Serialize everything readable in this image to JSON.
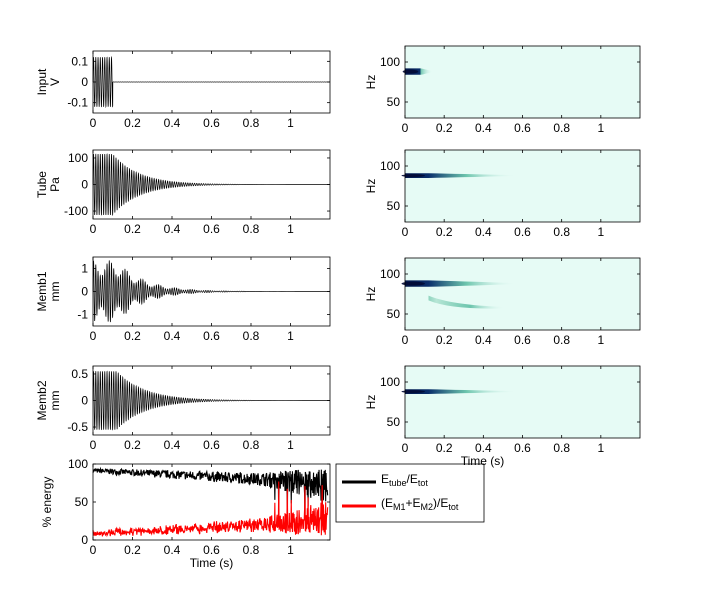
{
  "chart_data": [
    {
      "type": "line",
      "panel": "input-waveform",
      "ylabel": [
        "Input",
        "V"
      ],
      "xlim": [
        0,
        1.2
      ],
      "ylim": [
        -0.15,
        0.15
      ],
      "xticks": [
        0,
        0.2,
        0.4,
        0.6,
        0.8,
        1
      ],
      "xtick_labels": [
        "0",
        "0.2",
        "0.4",
        "0.6",
        "0.8",
        "1"
      ],
      "yticks": [
        -0.1,
        0,
        0.1
      ],
      "ytick_labels": [
        "-0.1",
        "0",
        "0.1"
      ],
      "signal": {
        "frequency_hz": 88,
        "amplitude": 0.12,
        "burst_end_s": 0.1,
        "decay_tau_s": 0.0
      }
    },
    {
      "type": "line",
      "panel": "tube-waveform",
      "ylabel": [
        "Tube",
        "Pa"
      ],
      "xlim": [
        0,
        1.2
      ],
      "ylim": [
        -130,
        130
      ],
      "xticks": [
        0,
        0.2,
        0.4,
        0.6,
        0.8,
        1
      ],
      "xtick_labels": [
        "0",
        "0.2",
        "0.4",
        "0.6",
        "0.8",
        "1"
      ],
      "yticks": [
        -100,
        0,
        100
      ],
      "ytick_labels": [
        "-100",
        "0",
        "100"
      ],
      "signal": {
        "frequency_hz": 88,
        "amplitude": 115,
        "burst_end_s": 0.1,
        "decay_tau_s": 0.13
      }
    },
    {
      "type": "line",
      "panel": "memb1-waveform",
      "ylabel": [
        "Memb1",
        "mm"
      ],
      "xlim": [
        0,
        1.2
      ],
      "ylim": [
        -1.5,
        1.5
      ],
      "xticks": [
        0,
        0.2,
        0.4,
        0.6,
        0.8,
        1
      ],
      "xtick_labels": [
        "0",
        "0.2",
        "0.4",
        "0.6",
        "0.8",
        "1"
      ],
      "yticks": [
        -1,
        0,
        1
      ],
      "ytick_labels": [
        "-1",
        "0",
        "1"
      ],
      "signal": {
        "frequency_hz": 88,
        "amplitude": 1.35,
        "burst_end_s": 0.12,
        "decay_tau_s": 0.14,
        "beat_hz": 12
      }
    },
    {
      "type": "line",
      "panel": "memb2-waveform",
      "ylabel": [
        "Memb2",
        "mm"
      ],
      "xlim": [
        0,
        1.2
      ],
      "ylim": [
        -0.65,
        0.65
      ],
      "xticks": [
        0,
        0.2,
        0.4,
        0.6,
        0.8,
        1
      ],
      "xtick_labels": [
        "0",
        "0.2",
        "0.4",
        "0.6",
        "0.8",
        "1"
      ],
      "yticks": [
        -0.5,
        0,
        0.5
      ],
      "ytick_labels": [
        "-0.5",
        "0",
        "0.5"
      ],
      "signal": {
        "frequency_hz": 88,
        "amplitude": 0.55,
        "burst_end_s": 0.12,
        "decay_tau_s": 0.14
      }
    },
    {
      "type": "line",
      "panel": "energy-ratio",
      "ylabel": "% energy",
      "xlabel": "Time (s)",
      "xlim": [
        0,
        1.2
      ],
      "ylim": [
        0,
        100
      ],
      "xticks": [
        0,
        0.2,
        0.4,
        0.6,
        0.8,
        1
      ],
      "xtick_labels": [
        "0",
        "0.2",
        "0.4",
        "0.6",
        "0.8",
        "1"
      ],
      "yticks": [
        0,
        50,
        100
      ],
      "ytick_labels": [
        "0",
        "50",
        "100"
      ],
      "legend": {
        "placement": "outside-right",
        "entries": [
          {
            "color": "#000000",
            "base": "E",
            "sub": "tube",
            "mid": "/E",
            "sub2": "tot"
          },
          {
            "color": "#ff0000",
            "parts": [
              "(E",
              "M1",
              "+E",
              "M2",
              ")/E",
              "tot"
            ]
          }
        ]
      },
      "series": [
        {
          "color": "#000000",
          "x": [
            0,
            0.1,
            0.2,
            0.3,
            0.4,
            0.5,
            0.6,
            0.7,
            0.8,
            0.9,
            1.0,
            1.1,
            1.18
          ],
          "y": [
            92,
            90,
            88,
            86,
            85,
            84,
            82,
            80,
            76,
            72,
            60,
            55,
            50
          ]
        },
        {
          "color": "#ff0000",
          "x": [
            0,
            0.1,
            0.2,
            0.3,
            0.4,
            0.5,
            0.6,
            0.7,
            0.8,
            0.9,
            1.0,
            1.1,
            1.18
          ],
          "y": [
            8,
            9,
            11,
            13,
            15,
            16,
            18,
            20,
            24,
            28,
            40,
            45,
            50
          ]
        }
      ]
    },
    {
      "type": "heatmap",
      "panel": "input-spectrogram",
      "ylabel": "Hz",
      "xlim": [
        0,
        1.2
      ],
      "ylim": [
        30,
        120
      ],
      "xticks": [
        0,
        0.2,
        0.4,
        0.6,
        0.8,
        1
      ],
      "xtick_labels": [
        "0",
        "0.2",
        "0.4",
        "0.6",
        "0.8",
        "1"
      ],
      "yticks": [
        50,
        100
      ],
      "ytick_labels": [
        "50",
        "100"
      ],
      "background": "#e6fbf5",
      "blobs": [
        {
          "freq": 88,
          "t0": 0.0,
          "t1": 0.08,
          "tail": 0.06,
          "width_hz": 4
        }
      ]
    },
    {
      "type": "heatmap",
      "panel": "tube-spectrogram",
      "ylabel": "Hz",
      "xlim": [
        0,
        1.2
      ],
      "ylim": [
        30,
        120
      ],
      "xticks": [
        0,
        0.2,
        0.4,
        0.6,
        0.8,
        1
      ],
      "xtick_labels": [
        "0",
        "0.2",
        "0.4",
        "0.6",
        "0.8",
        "1"
      ],
      "yticks": [
        50,
        100
      ],
      "ytick_labels": [
        "50",
        "100"
      ],
      "background": "#e6fbf5",
      "blobs": [
        {
          "freq": 88,
          "t0": 0.0,
          "t1": 0.12,
          "tail": 0.45,
          "width_hz": 3
        }
      ]
    },
    {
      "type": "heatmap",
      "panel": "memb1-spectrogram",
      "ylabel": "Hz",
      "xlim": [
        0,
        1.2
      ],
      "ylim": [
        30,
        120
      ],
      "xticks": [
        0,
        0.2,
        0.4,
        0.6,
        0.8,
        1
      ],
      "xtick_labels": [
        "0",
        "0.2",
        "0.4",
        "0.6",
        "0.8",
        "1"
      ],
      "yticks": [
        50,
        100
      ],
      "ytick_labels": [
        "50",
        "100"
      ],
      "background": "#e6fbf5",
      "blobs": [
        {
          "freq": 88,
          "t0": 0.0,
          "t1": 0.12,
          "tail": 0.45,
          "width_hz": 4
        },
        {
          "freq_start": 70,
          "freq": 58,
          "t0": 0.12,
          "t1": 0.16,
          "tail": 0.35,
          "width_hz": 3,
          "weak": true
        }
      ]
    },
    {
      "type": "heatmap",
      "panel": "memb2-spectrogram",
      "ylabel": "Hz",
      "xlabel": "Time (s)",
      "xlim": [
        0,
        1.2
      ],
      "ylim": [
        30,
        120
      ],
      "xticks": [
        0,
        0.2,
        0.4,
        0.6,
        0.8,
        1
      ],
      "xtick_labels": [
        "0",
        "0.2",
        "0.4",
        "0.6",
        "0.8",
        "1"
      ],
      "yticks": [
        50,
        100
      ],
      "ytick_labels": [
        "50",
        "100"
      ],
      "background": "#e6fbf5",
      "blobs": [
        {
          "freq": 88,
          "t0": 0.0,
          "t1": 0.12,
          "tail": 0.45,
          "width_hz": 3
        }
      ]
    }
  ]
}
